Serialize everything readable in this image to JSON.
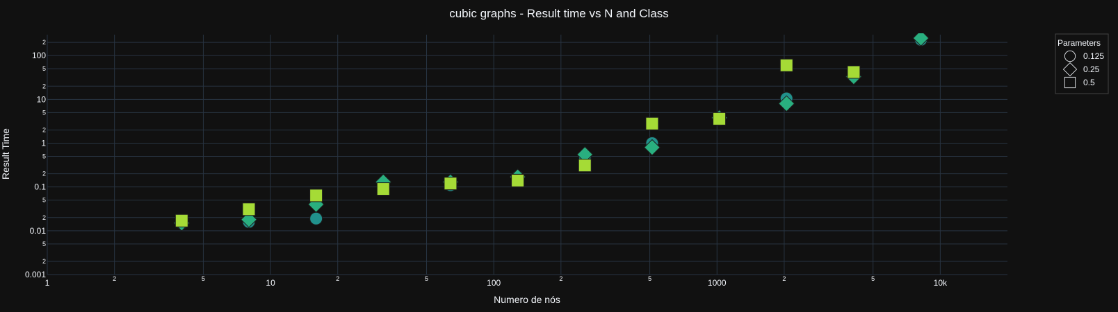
{
  "chart_data": {
    "type": "scatter",
    "title": "cubic graphs - Result time vs N and Class",
    "xlabel": "Numero de nós",
    "ylabel": "Result Time",
    "x_scale": "log",
    "y_scale": "log",
    "xlim": [
      1,
      20000
    ],
    "ylim": [
      0.001,
      300
    ],
    "grid": true,
    "legend": {
      "title": "Parameters",
      "placement": "top-right"
    },
    "x_ticks": {
      "major": [
        {
          "v": 1,
          "label": "1"
        },
        {
          "v": 10,
          "label": "10"
        },
        {
          "v": 100,
          "label": "100"
        },
        {
          "v": 1000,
          "label": "1000"
        },
        {
          "v": 10000,
          "label": "10k"
        }
      ],
      "minor": [
        {
          "v": 2,
          "label": "2"
        },
        {
          "v": 5,
          "label": "5"
        },
        {
          "v": 20,
          "label": "2"
        },
        {
          "v": 50,
          "label": "5"
        },
        {
          "v": 200,
          "label": "2"
        },
        {
          "v": 500,
          "label": "5"
        },
        {
          "v": 2000,
          "label": "2"
        },
        {
          "v": 5000,
          "label": "5"
        }
      ]
    },
    "y_ticks": {
      "major": [
        {
          "v": 0.001,
          "label": "0.001"
        },
        {
          "v": 0.01,
          "label": "0.01"
        },
        {
          "v": 0.1,
          "label": "0.1"
        },
        {
          "v": 1,
          "label": "1"
        },
        {
          "v": 10,
          "label": "10"
        },
        {
          "v": 100,
          "label": "100"
        }
      ],
      "minor": [
        {
          "v": 0.002,
          "label": "2"
        },
        {
          "v": 0.005,
          "label": "5"
        },
        {
          "v": 0.02,
          "label": "2"
        },
        {
          "v": 0.05,
          "label": "5"
        },
        {
          "v": 0.2,
          "label": "2"
        },
        {
          "v": 0.5,
          "label": "5"
        },
        {
          "v": 2,
          "label": "2"
        },
        {
          "v": 5,
          "label": "5"
        },
        {
          "v": 20,
          "label": "2"
        },
        {
          "v": 50,
          "label": "5"
        },
        {
          "v": 200,
          "label": "2"
        }
      ]
    },
    "series": [
      {
        "name": "0.125",
        "marker": "circle",
        "color": "#21918c",
        "x": [
          4,
          8,
          16,
          32,
          64,
          128,
          256,
          512,
          1024,
          2048,
          4096,
          8192
        ],
        "y": [
          0.015,
          0.016,
          0.019,
          0.12,
          0.11,
          0.17,
          0.5,
          1.0,
          3.5,
          10.5,
          35,
          230
        ]
      },
      {
        "name": "0.25",
        "marker": "diamond",
        "color": "#29af7f",
        "x": [
          4,
          8,
          16,
          32,
          64,
          128,
          256,
          512,
          1024,
          2048,
          4096,
          8192
        ],
        "y": [
          0.015,
          0.018,
          0.04,
          0.13,
          0.13,
          0.17,
          0.55,
          0.8,
          3.8,
          8,
          33,
          250
        ]
      },
      {
        "name": "0.5",
        "marker": "square",
        "color": "#a5db36",
        "x": [
          4,
          8,
          16,
          32,
          64,
          128,
          256,
          512,
          1024,
          2048,
          4096
        ],
        "y": [
          0.017,
          0.031,
          0.064,
          0.09,
          0.12,
          0.14,
          0.31,
          2.8,
          3.6,
          60,
          42
        ]
      }
    ]
  }
}
